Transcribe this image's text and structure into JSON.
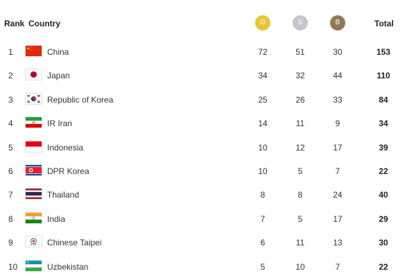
{
  "header": {
    "rank": "Rank",
    "country": "Country",
    "gold": "G",
    "silver": "S",
    "bronze": "B",
    "total": "Total"
  },
  "colors": {
    "gold": "#e8c534",
    "silver": "#c4c6cc",
    "bronze": "#8f7a57"
  },
  "rows": [
    {
      "rank": "1",
      "country": "China",
      "flag": "china-flag-icon",
      "gold": "72",
      "silver": "51",
      "bronze": "30",
      "total": "153"
    },
    {
      "rank": "2",
      "country": "Japan",
      "flag": "japan-flag-icon",
      "gold": "34",
      "silver": "32",
      "bronze": "44",
      "total": "110"
    },
    {
      "rank": "3",
      "country": "Republic of Korea",
      "flag": "korea-flag-icon",
      "gold": "25",
      "silver": "26",
      "bronze": "33",
      "total": "84"
    },
    {
      "rank": "4",
      "country": "IR Iran",
      "flag": "iran-flag-icon",
      "gold": "14",
      "silver": "11",
      "bronze": "9",
      "total": "34"
    },
    {
      "rank": "5",
      "country": "Indonesia",
      "flag": "indonesia-flag-icon",
      "gold": "10",
      "silver": "12",
      "bronze": "17",
      "total": "39"
    },
    {
      "rank": "6",
      "country": "DPR Korea",
      "flag": "dpr-korea-flag-icon",
      "gold": "10",
      "silver": "5",
      "bronze": "7",
      "total": "22"
    },
    {
      "rank": "7",
      "country": "Thailand",
      "flag": "thailand-flag-icon",
      "gold": "8",
      "silver": "8",
      "bronze": "24",
      "total": "40"
    },
    {
      "rank": "8",
      "country": "India",
      "flag": "india-flag-icon",
      "gold": "7",
      "silver": "5",
      "bronze": "17",
      "total": "29"
    },
    {
      "rank": "9",
      "country": "Chinese Taipei",
      "flag": "chinese-taipei-flag-icon",
      "gold": "6",
      "silver": "11",
      "bronze": "13",
      "total": "30"
    },
    {
      "rank": "10",
      "country": "Uzbekistan",
      "flag": "uzbekistan-flag-icon",
      "gold": "5",
      "silver": "10",
      "bronze": "7",
      "total": "22"
    }
  ]
}
